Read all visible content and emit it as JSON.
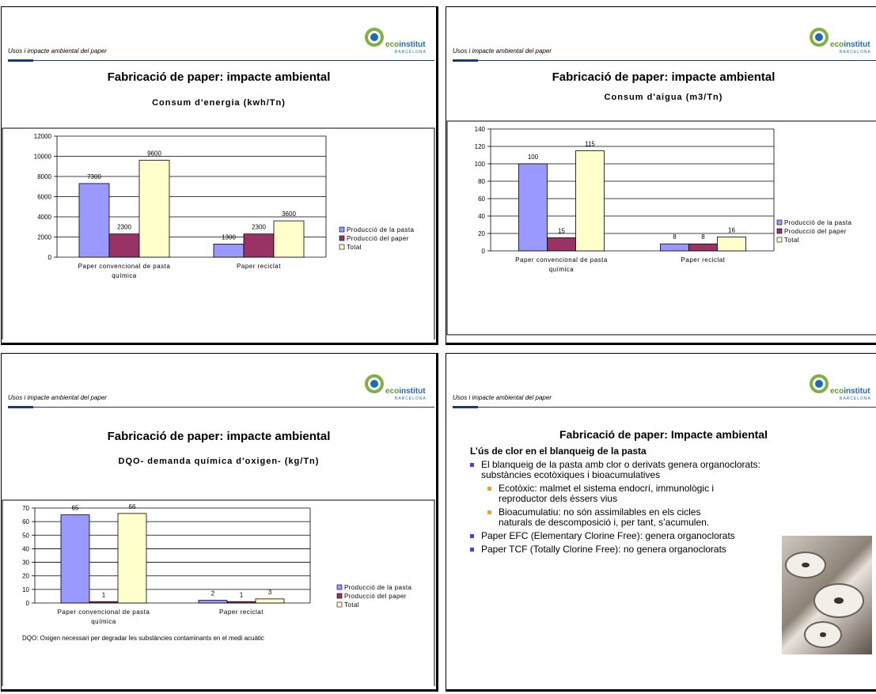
{
  "common": {
    "header": "Usos i impacte ambiental del paper",
    "logo": {
      "eco": "eco",
      "institut": "institut",
      "sub": "BARCELONA"
    },
    "title": "Fabricació de paper: impacte ambiental"
  },
  "slide4": {
    "title": "Fabricació de paper: Impacte ambiental",
    "heading": "L’ús de clor en el blanqueig de la pasta",
    "b1": "El blanqueig de la pasta amb clor o derivats genera organoclorats: substàncies ecotòxiques i bioacumulatives",
    "b1a": "Ecotòxic: malmet el sistema endocrí, immunològic i reproductor dels éssers vius",
    "b1b": "Bioacumulatiu: no són assimilables en els cicles naturals de descomposició i, per tant, s’acumulen.",
    "b2": "Paper EFC (Elementary Clorine Free): genera organoclorats",
    "b3": "Paper TCF (Totally Clorine Free): no genera organoclorats",
    "photo_icon": "paper-rolls-photo"
  },
  "footnote": "DQO: Oxigen necessari per degradar les substàncies contaminants en el medi acuàtic",
  "chart_data": [
    {
      "type": "bar",
      "title": "Consum d'energia (kwh/Tn)",
      "categories": [
        "Paper convencional de pasta química",
        "Paper reciclat"
      ],
      "series": [
        {
          "name": "Producció de la pasta",
          "values": [
            7300,
            1300
          ],
          "color": "#9999ff"
        },
        {
          "name": "Producció del paper",
          "values": [
            2300,
            2300
          ],
          "color": "#993366"
        },
        {
          "name": "Total",
          "values": [
            9600,
            3600
          ],
          "color": "#ffffcc"
        }
      ],
      "ylim": [
        0,
        12000
      ],
      "yticks": [
        0,
        2000,
        4000,
        6000,
        8000,
        10000,
        12000
      ],
      "legend": "right"
    },
    {
      "type": "bar",
      "title": "Consum d'aigua (m3/Tn)",
      "categories": [
        "Paper convencional de pasta química",
        "Paper reciclat"
      ],
      "series": [
        {
          "name": "Producció de la pasta",
          "values": [
            100,
            8
          ],
          "color": "#9999ff"
        },
        {
          "name": "Producció del paper",
          "values": [
            15,
            8
          ],
          "color": "#993366"
        },
        {
          "name": "Total",
          "values": [
            115,
            16
          ],
          "color": "#ffffcc"
        }
      ],
      "ylim": [
        0,
        140
      ],
      "yticks": [
        0,
        20,
        40,
        60,
        80,
        100,
        120,
        140
      ],
      "legend": "right"
    },
    {
      "type": "bar",
      "title": "DQO- demanda química d'oxigen- (kg/Tn)",
      "categories": [
        "Paper convencional de pasta química",
        "Paper reciclat"
      ],
      "series": [
        {
          "name": "Producció de la pasta",
          "values": [
            65,
            2
          ],
          "color": "#9999ff"
        },
        {
          "name": "Producció del paper",
          "values": [
            1,
            1
          ],
          "color": "#993366"
        },
        {
          "name": "Total",
          "values": [
            66,
            3
          ],
          "color": "#ffffcc"
        }
      ],
      "ylim": [
        0,
        70
      ],
      "yticks": [
        0,
        10,
        20,
        30,
        40,
        50,
        60,
        70
      ],
      "legend": "right"
    }
  ]
}
